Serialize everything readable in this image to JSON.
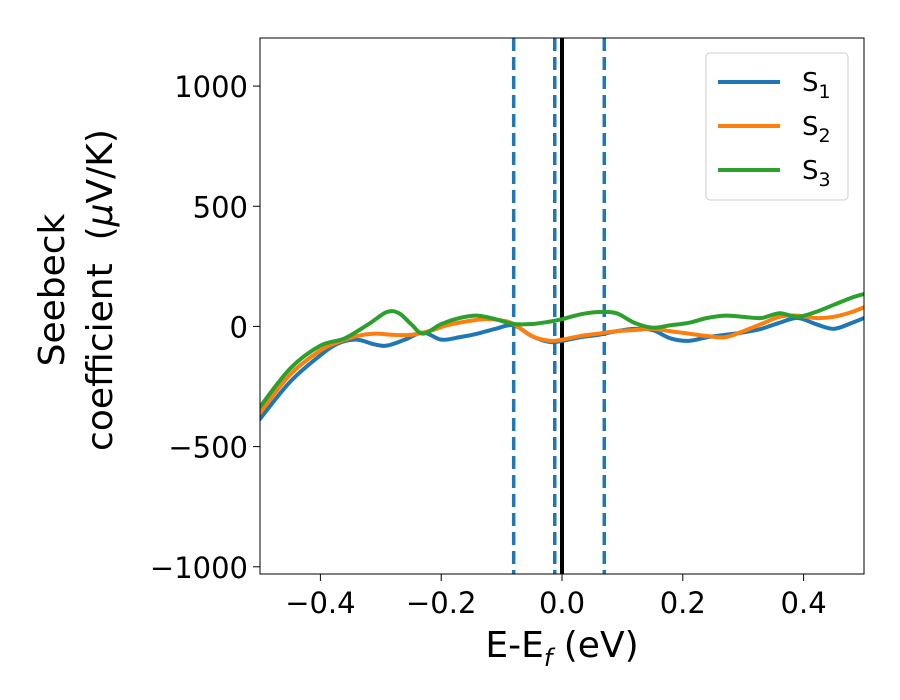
{
  "chart_data": {
    "type": "line",
    "title": "",
    "xlabel": {
      "main": "E-E",
      "sub": "f",
      "tail": " (eV)"
    },
    "ylabel": {
      "line1": "Seebeck",
      "line2": "coefficient  (",
      "mu": "μ",
      "tail": "V/K)"
    },
    "xlim": [
      -0.5,
      0.5
    ],
    "ylim": [
      -1030,
      1200
    ],
    "xticks": [
      {
        "value": -0.4,
        "label": "−0.4"
      },
      {
        "value": -0.2,
        "label": "−0.2"
      },
      {
        "value": 0.0,
        "label": "0.0"
      },
      {
        "value": 0.2,
        "label": "0.2"
      },
      {
        "value": 0.4,
        "label": "0.4"
      }
    ],
    "yticks": [
      {
        "value": 1000,
        "label": "1000"
      },
      {
        "value": 500,
        "label": "500"
      },
      {
        "value": 0,
        "label": "0"
      },
      {
        "value": -500,
        "label": "−500"
      },
      {
        "value": -1000,
        "label": "−1000"
      }
    ],
    "grid": false,
    "legend_position": "top-right",
    "vlines": [
      {
        "x": -0.08,
        "color": "#1f77b4",
        "style": "dashed"
      },
      {
        "x": -0.012,
        "color": "#1f77b4",
        "style": "dashed"
      },
      {
        "x": 0.07,
        "color": "#1f77b4",
        "style": "dashed"
      },
      {
        "x": 0.0,
        "color": "#000000",
        "style": "solid"
      }
    ],
    "series": [
      {
        "name": "S",
        "sub": "1",
        "color": "#1f77b4",
        "x": [
          -0.5,
          -0.45,
          -0.4,
          -0.37,
          -0.34,
          -0.31,
          -0.29,
          -0.26,
          -0.23,
          -0.2,
          -0.17,
          -0.14,
          -0.11,
          -0.08,
          -0.05,
          -0.02,
          0.0,
          0.03,
          0.06,
          0.09,
          0.12,
          0.15,
          0.18,
          0.21,
          0.24,
          0.27,
          0.3,
          0.33,
          0.36,
          0.39,
          0.42,
          0.45,
          0.48,
          0.5
        ],
        "y": [
          -385,
          -230,
          -120,
          -70,
          -55,
          -75,
          -80,
          -55,
          -25,
          -55,
          -45,
          -30,
          -10,
          5,
          -40,
          -65,
          -60,
          -45,
          -35,
          -20,
          -10,
          -15,
          -50,
          -60,
          -45,
          -35,
          -25,
          -10,
          15,
          35,
          10,
          -10,
          15,
          35
        ]
      },
      {
        "name": "S",
        "sub": "2",
        "color": "#ff7f0e",
        "x": [
          -0.5,
          -0.45,
          -0.4,
          -0.37,
          -0.34,
          -0.31,
          -0.28,
          -0.25,
          -0.22,
          -0.19,
          -0.16,
          -0.13,
          -0.1,
          -0.08,
          -0.05,
          -0.02,
          0.0,
          0.03,
          0.06,
          0.09,
          0.12,
          0.15,
          0.18,
          0.21,
          0.24,
          0.27,
          0.3,
          0.33,
          0.36,
          0.39,
          0.42,
          0.45,
          0.48,
          0.5
        ],
        "y": [
          -360,
          -200,
          -100,
          -65,
          -40,
          -30,
          -35,
          -35,
          -20,
          5,
          20,
          30,
          25,
          10,
          -40,
          -60,
          -55,
          -40,
          -30,
          -20,
          -15,
          -10,
          -20,
          -30,
          -40,
          -45,
          -20,
          10,
          40,
          45,
          35,
          40,
          60,
          80
        ]
      },
      {
        "name": "S",
        "sub": "3",
        "color": "#2ca02c",
        "x": [
          -0.5,
          -0.45,
          -0.4,
          -0.36,
          -0.32,
          -0.29,
          -0.27,
          -0.25,
          -0.23,
          -0.2,
          -0.17,
          -0.14,
          -0.11,
          -0.08,
          -0.05,
          -0.02,
          0.0,
          0.03,
          0.06,
          0.09,
          0.12,
          0.15,
          0.18,
          0.21,
          0.24,
          0.27,
          0.3,
          0.33,
          0.36,
          0.39,
          0.42,
          0.45,
          0.48,
          0.5
        ],
        "y": [
          -335,
          -175,
          -80,
          -50,
          10,
          60,
          55,
          10,
          -30,
          10,
          35,
          45,
          30,
          10,
          10,
          20,
          30,
          50,
          60,
          55,
          15,
          -5,
          5,
          15,
          35,
          45,
          40,
          35,
          55,
          40,
          60,
          90,
          120,
          135
        ]
      }
    ]
  }
}
